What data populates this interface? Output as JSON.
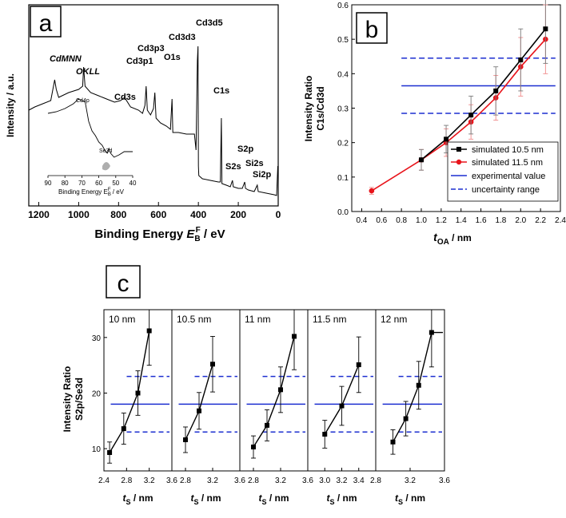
{
  "chart_data": [
    {
      "panel": "a",
      "type": "line",
      "xlabel_main": "Binding Energy ",
      "xlabel_sym": "E",
      "xlabel_sub": "B",
      "xlabel_sup": "F",
      "xlabel_unit": " / eV",
      "ylabel": "Intensity / a.u.",
      "xlim": [
        1250,
        0
      ],
      "x_ticks": [
        "1200",
        "1000",
        "800",
        "600",
        "400",
        "200",
        "0"
      ],
      "x_tick_values": [
        1200,
        1000,
        800,
        600,
        400,
        200,
        0
      ],
      "peak_labels": [
        {
          "text": "CdMNN",
          "italic": true
        },
        {
          "text": "OKLL",
          "italic": true
        },
        {
          "text": "Cd3s",
          "italic": false
        },
        {
          "text": "Cd3p3",
          "italic": false
        },
        {
          "text": "Cd3p1",
          "italic": false
        },
        {
          "text": "O1s",
          "italic": false
        },
        {
          "text": "Cd3d3",
          "italic": false
        },
        {
          "text": "Cd3d5",
          "italic": false
        },
        {
          "text": "C1s",
          "italic": false
        },
        {
          "text": "S2p",
          "italic": false
        },
        {
          "text": "S2s",
          "italic": false
        },
        {
          "text": "Si2s",
          "italic": false
        },
        {
          "text": "Si2p",
          "italic": false
        }
      ],
      "spectrum": [
        [
          1250,
          0.55
        ],
        [
          1220,
          0.57
        ],
        [
          1180,
          0.59
        ],
        [
          1140,
          0.61
        ],
        [
          1120,
          0.74
        ],
        [
          1112,
          0.68
        ],
        [
          1100,
          0.63
        ],
        [
          1050,
          0.66
        ],
        [
          1000,
          0.68
        ],
        [
          980,
          0.7
        ],
        [
          975,
          0.82
        ],
        [
          968,
          0.7
        ],
        [
          940,
          0.66
        ],
        [
          900,
          0.64
        ],
        [
          860,
          0.62
        ],
        [
          820,
          0.6
        ],
        [
          790,
          0.61
        ],
        [
          770,
          0.63
        ],
        [
          740,
          0.57
        ],
        [
          700,
          0.55
        ],
        [
          680,
          0.53
        ],
        [
          668,
          0.58
        ],
        [
          662,
          0.7
        ],
        [
          656,
          0.55
        ],
        [
          640,
          0.52
        ],
        [
          625,
          0.56
        ],
        [
          618,
          0.66
        ],
        [
          612,
          0.5
        ],
        [
          590,
          0.47
        ],
        [
          560,
          0.45
        ],
        [
          540,
          0.43
        ],
        [
          532,
          0.62
        ],
        [
          528,
          0.41
        ],
        [
          500,
          0.41
        ],
        [
          460,
          0.4
        ],
        [
          420,
          0.4
        ],
        [
          412,
          0.3
        ],
        [
          407,
          0.7
        ],
        [
          405,
          0.86
        ],
        [
          402,
          0.95
        ],
        [
          400,
          0.2
        ],
        [
          398,
          0.14
        ],
        [
          380,
          0.12
        ],
        [
          340,
          0.11
        ],
        [
          300,
          0.1
        ],
        [
          290,
          0.1
        ],
        [
          285,
          0.5
        ],
        [
          282,
          0.09
        ],
        [
          260,
          0.08
        ],
        [
          240,
          0.07
        ],
        [
          229,
          0.11
        ],
        [
          225,
          0.07
        ],
        [
          200,
          0.06
        ],
        [
          180,
          0.06
        ],
        [
          168,
          0.1
        ],
        [
          164,
          0.06
        ],
        [
          150,
          0.05
        ],
        [
          120,
          0.04
        ],
        [
          105,
          0.08
        ],
        [
          100,
          0.04
        ],
        [
          60,
          0.03
        ],
        [
          20,
          0.02
        ],
        [
          8,
          0.015
        ],
        [
          2,
          0.2
        ]
      ],
      "inset": {
        "xlabel": "Binding Energy E",
        "xlabel_sub": "B",
        "xlabel_sup": "F",
        "xlabel_unit": " / eV",
        "x_ticks": [
          "90",
          "80",
          "70",
          "60",
          "50",
          "40"
        ],
        "xlim": [
          90,
          40
        ],
        "labels": [
          "Cd4p",
          "Se3d"
        ],
        "spectrum": [
          [
            90,
            0.7
          ],
          [
            85,
            0.72
          ],
          [
            80,
            0.76
          ],
          [
            75,
            0.82
          ],
          [
            72,
            0.88
          ],
          [
            68,
            0.84
          ],
          [
            66,
            0.6
          ],
          [
            64,
            0.48
          ],
          [
            62,
            0.42
          ],
          [
            60,
            0.34
          ],
          [
            58,
            0.3
          ],
          [
            56,
            0.22
          ],
          [
            55,
            0.2
          ],
          [
            54,
            0.26
          ],
          [
            53,
            0.2
          ],
          [
            51,
            0.15
          ],
          [
            48,
            0.18
          ],
          [
            45,
            0.22
          ],
          [
            42,
            0.22
          ],
          [
            40,
            0.22
          ]
        ]
      }
    },
    {
      "panel": "b",
      "type": "line",
      "xlabel": "t",
      "xlabel_sub": "OA",
      "xlabel_unit": " / nm",
      "ylabel_1": "Intensity Ratio",
      "ylabel_2": "C1s/Cd3d",
      "xlim": [
        0.3,
        2.4
      ],
      "ylim": [
        0,
        0.6
      ],
      "x_ticks": [
        "0.4",
        "0.6",
        "0.8",
        "1.0",
        "1.2",
        "1.4",
        "1.6",
        "1.8",
        "2.0",
        "2.2",
        "2.4"
      ],
      "y_ticks": [
        "0.0",
        "0.1",
        "0.2",
        "0.3",
        "0.4",
        "0.5",
        "0.6"
      ],
      "series": [
        {
          "name": "simulated 10.5 nm",
          "color": "#000000",
          "marker": "square",
          "x": [
            1.0,
            1.25,
            1.5,
            1.75,
            2.0,
            2.25
          ],
          "y": [
            0.15,
            0.21,
            0.28,
            0.35,
            0.44,
            0.53
          ],
          "err": [
            0.03,
            0.04,
            0.055,
            0.07,
            0.09,
            0.1
          ]
        },
        {
          "name": "simulated 11.5 nm",
          "color": "#e8141b",
          "marker": "circle",
          "x": [
            0.5,
            1.0,
            1.25,
            1.5,
            1.75,
            2.0,
            2.25
          ],
          "y": [
            0.06,
            0.15,
            0.2,
            0.26,
            0.33,
            0.42,
            0.5
          ],
          "err": [
            0.01,
            0.03,
            0.04,
            0.05,
            0.065,
            0.085,
            0.1
          ]
        }
      ],
      "experimental_value": 0.365,
      "uncertainty_range": [
        0.285,
        0.445
      ],
      "legend_experimental": "experimental value",
      "legend_uncertainty": "uncertainty range",
      "legend_position": "bottom-right"
    },
    {
      "panel": "c",
      "type": "line",
      "xlabel": "t",
      "xlabel_sub": "S",
      "xlabel_unit": " / nm",
      "ylabel_1": "Intensity Ratio",
      "ylabel_2": "S2p/Se3d",
      "ylim": [
        6,
        35
      ],
      "y_ticks": [
        "10",
        "20",
        "30"
      ],
      "y_tick_values": [
        10,
        20,
        30
      ],
      "experimental_value": 18,
      "uncertainty_range": [
        13,
        23
      ],
      "subpanels": [
        {
          "label": "10 nm",
          "xlim": [
            2.4,
            3.6
          ],
          "x_ticks": [
            "2.4",
            "2.8",
            "3.2",
            "3.6"
          ],
          "x_tick_values": [
            2.4,
            2.8,
            3.2,
            3.6
          ],
          "x": [
            2.5,
            2.75,
            3.0,
            3.2
          ],
          "y": [
            9.3,
            13.6,
            20.0,
            31.2
          ],
          "err": [
            1.9,
            2.8,
            4.0,
            6.2
          ],
          "line_start": 2.75
        },
        {
          "label": "10.5 nm",
          "xlim": [
            2.6,
            3.6
          ],
          "x_ticks": [
            "2.8",
            "3.2",
            "3.6"
          ],
          "x_tick_values": [
            2.8,
            3.2,
            3.6
          ],
          "x": [
            2.8,
            3.0,
            3.2
          ],
          "y": [
            11.6,
            16.8,
            25.2
          ],
          "err": [
            2.3,
            3.3,
            5.0
          ],
          "line_start": 2.8
        },
        {
          "label": "11 nm",
          "xlim": [
            2.6,
            3.6
          ],
          "x_ticks": [
            "2.8",
            "3.2",
            "3.6"
          ],
          "x_tick_values": [
            2.8,
            3.2,
            3.6
          ],
          "x": [
            2.8,
            3.0,
            3.2,
            3.4
          ],
          "y": [
            10.3,
            14.2,
            20.6,
            30.2
          ],
          "err": [
            2.0,
            2.8,
            4.1,
            6.0
          ],
          "line_start": 2.8
        },
        {
          "label": "11.5 nm",
          "xlim": [
            2.8,
            3.6
          ],
          "x_ticks": [
            "3.0",
            "3.2",
            "3.4"
          ],
          "x_tick_values": [
            3.0,
            3.2,
            3.4
          ],
          "x": [
            3.0,
            3.2,
            3.4
          ],
          "y": [
            12.6,
            17.7,
            25.1
          ],
          "err": [
            2.5,
            3.5,
            5.0
          ],
          "line_start": 2.98
        },
        {
          "label": "12 nm",
          "xlim": [
            2.8,
            3.6
          ],
          "x_ticks": [
            "2.8",
            "3.2",
            "3.6"
          ],
          "x_tick_values": [
            2.8,
            3.2,
            3.6
          ],
          "x": [
            3.0,
            3.15,
            3.3,
            3.45,
            3.6
          ],
          "y": [
            11.2,
            15.4,
            21.4,
            30.9,
            30.9
          ],
          "err": [
            2.2,
            3.1,
            4.3,
            6.2,
            0
          ],
          "line_start": 3.0
        }
      ]
    }
  ],
  "panel_labels": {
    "a": "a",
    "b": "b",
    "c": "c"
  },
  "colors": {
    "blue": "#1c2fd0",
    "red": "#e8141b",
    "black": "#000000",
    "red_error": "#f08a8a"
  }
}
